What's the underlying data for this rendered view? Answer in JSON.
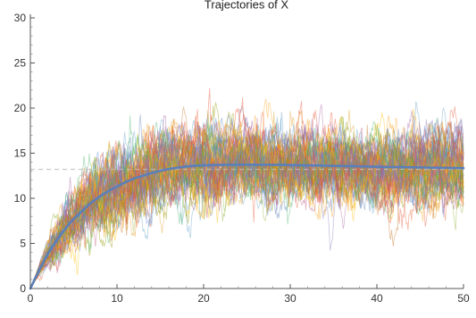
{
  "chart_data": {
    "type": "line",
    "title": "Trajectories of X",
    "xlabel": "",
    "ylabel": "",
    "xlim": [
      0,
      50
    ],
    "ylim": [
      0,
      30
    ],
    "x_ticks": [
      0,
      10,
      20,
      30,
      40,
      50
    ],
    "y_ticks": [
      0,
      5,
      10,
      15,
      20,
      25,
      30
    ],
    "grid": false,
    "legend": "none",
    "reference_lines": [
      {
        "y": 13.2,
        "style": "dashed",
        "color": "#bfbfbf"
      }
    ],
    "mean_curve": {
      "color": "#5b7fb9",
      "x": [
        0,
        1,
        2,
        3,
        4,
        5,
        6,
        7,
        8,
        9,
        10,
        11,
        12,
        13,
        14,
        15,
        16,
        17,
        18,
        19,
        20,
        22,
        24,
        26,
        28,
        30,
        32,
        34,
        36,
        38,
        40,
        42,
        44,
        46,
        48,
        50
      ],
      "y": [
        0,
        2.0,
        3.8,
        5.3,
        6.6,
        7.7,
        8.6,
        9.5,
        10.2,
        10.8,
        11.3,
        11.8,
        12.2,
        12.5,
        12.8,
        13.05,
        13.25,
        13.4,
        13.52,
        13.6,
        13.65,
        13.7,
        13.72,
        13.72,
        13.7,
        13.68,
        13.65,
        13.62,
        13.58,
        13.54,
        13.5,
        13.47,
        13.44,
        13.41,
        13.38,
        13.35
      ]
    },
    "trajectories": {
      "count": 60,
      "dt": 0.1,
      "kappa": 0.18,
      "sigma": 2.6,
      "seed": 7,
      "opacity": 0.45,
      "colors": [
        "#5e81b5",
        "#e19c24",
        "#8fb032",
        "#eb6235",
        "#8778b3",
        "#c56e1a",
        "#5d9ec7",
        "#ffbf00",
        "#a5609d",
        "#929600",
        "#e95536",
        "#6685d9",
        "#f89f13",
        "#bc5b80",
        "#47b66d"
      ]
    }
  }
}
